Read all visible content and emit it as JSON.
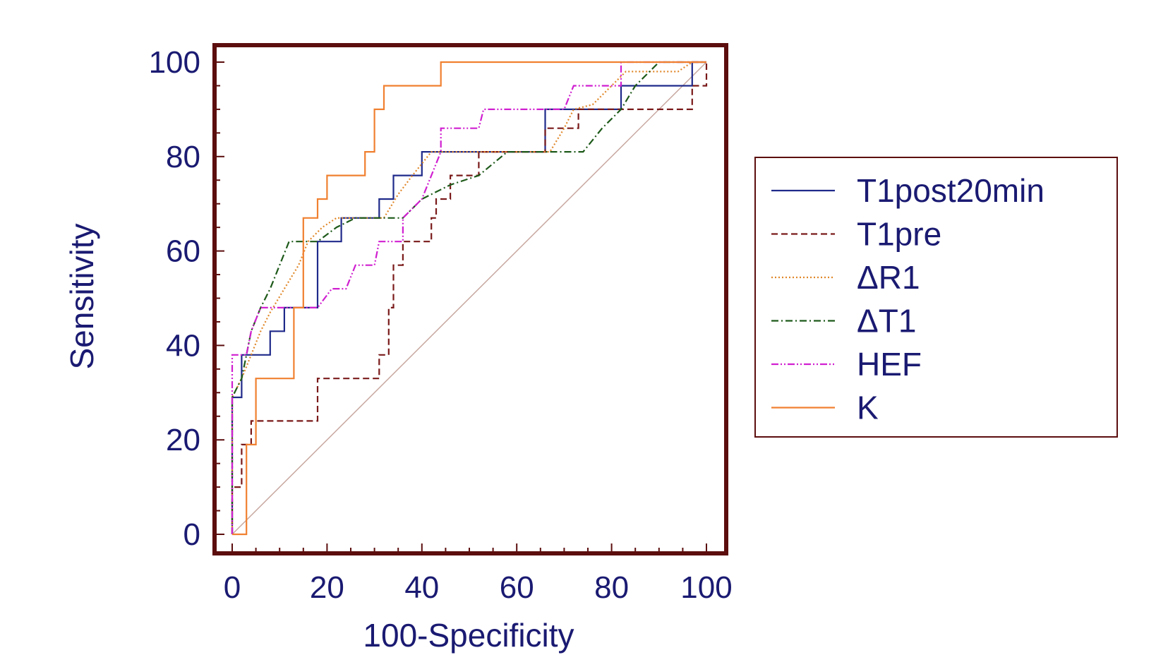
{
  "chart_data": {
    "type": "line",
    "title": "",
    "xlabel": "100-Specificity",
    "ylabel": "Sensitivity",
    "xlim": [
      0,
      100
    ],
    "ylim": [
      0,
      100
    ],
    "xticks": [
      "0",
      "20",
      "40",
      "60",
      "80",
      "100"
    ],
    "yticks": [
      "0",
      "20",
      "40",
      "60",
      "80",
      "100"
    ],
    "legend_position": "right",
    "reference_line": {
      "name": "diagonal",
      "color": "#c8a8a0",
      "points": [
        [
          0,
          0
        ],
        [
          100,
          100
        ]
      ]
    },
    "frame_color": "#5c0e0e",
    "series": [
      {
        "name": "T1post20min",
        "color": "#1f2a8a",
        "dash": "solid",
        "points": [
          [
            0,
            0
          ],
          [
            0,
            29
          ],
          [
            2,
            29
          ],
          [
            2,
            38
          ],
          [
            8,
            38
          ],
          [
            8,
            43
          ],
          [
            11,
            43
          ],
          [
            11,
            48
          ],
          [
            18,
            48
          ],
          [
            18,
            62
          ],
          [
            23,
            62
          ],
          [
            23,
            67
          ],
          [
            31,
            67
          ],
          [
            31,
            71
          ],
          [
            34,
            71
          ],
          [
            34,
            76
          ],
          [
            40,
            76
          ],
          [
            40,
            81
          ],
          [
            66,
            81
          ],
          [
            66,
            90
          ],
          [
            82,
            90
          ],
          [
            82,
            95
          ],
          [
            97,
            95
          ],
          [
            97,
            100
          ],
          [
            100,
            100
          ]
        ]
      },
      {
        "name": "T1pre",
        "color": "#7a1a1a",
        "dash": "9,5",
        "points": [
          [
            0,
            0
          ],
          [
            0,
            10
          ],
          [
            2,
            10
          ],
          [
            2,
            19
          ],
          [
            4,
            19
          ],
          [
            4,
            24
          ],
          [
            18,
            24
          ],
          [
            18,
            33
          ],
          [
            31,
            33
          ],
          [
            31,
            38
          ],
          [
            33,
            38
          ],
          [
            33,
            48
          ],
          [
            34,
            48
          ],
          [
            34,
            57
          ],
          [
            36,
            57
          ],
          [
            36,
            62
          ],
          [
            42,
            62
          ],
          [
            42,
            67
          ],
          [
            43,
            67
          ],
          [
            43,
            71
          ],
          [
            46,
            71
          ],
          [
            46,
            76
          ],
          [
            52,
            76
          ],
          [
            52,
            81
          ],
          [
            66,
            81
          ],
          [
            66,
            86
          ],
          [
            73,
            86
          ],
          [
            73,
            90
          ],
          [
            97,
            90
          ],
          [
            97,
            95
          ],
          [
            100,
            95
          ],
          [
            100,
            100
          ]
        ]
      },
      {
        "name": "ΔR1",
        "color": "#e0882a",
        "dash": "2,3",
        "points": [
          [
            0,
            0
          ],
          [
            0,
            29
          ],
          [
            2,
            33
          ],
          [
            4,
            38
          ],
          [
            6,
            43
          ],
          [
            8,
            47
          ],
          [
            11,
            52
          ],
          [
            14,
            57
          ],
          [
            16,
            62
          ],
          [
            19,
            65
          ],
          [
            22,
            67
          ],
          [
            32,
            67
          ],
          [
            35,
            72
          ],
          [
            38,
            76
          ],
          [
            42,
            81
          ],
          [
            67,
            81
          ],
          [
            70,
            86
          ],
          [
            72,
            90
          ],
          [
            76,
            91
          ],
          [
            80,
            95
          ],
          [
            83,
            98
          ],
          [
            94,
            98
          ],
          [
            97,
            100
          ],
          [
            100,
            100
          ]
        ]
      },
      {
        "name": "ΔT1",
        "color": "#1e5a1a",
        "dash": "10,4,2,4",
        "points": [
          [
            0,
            0
          ],
          [
            0,
            29
          ],
          [
            2,
            33
          ],
          [
            3,
            38
          ],
          [
            4,
            43
          ],
          [
            6,
            48
          ],
          [
            8,
            52
          ],
          [
            10,
            57
          ],
          [
            12,
            62
          ],
          [
            18,
            62
          ],
          [
            22,
            65
          ],
          [
            26,
            67
          ],
          [
            36,
            67
          ],
          [
            40,
            71
          ],
          [
            46,
            74
          ],
          [
            52,
            76
          ],
          [
            58,
            81
          ],
          [
            74,
            81
          ],
          [
            78,
            86
          ],
          [
            82,
            90
          ],
          [
            85,
            95
          ],
          [
            88,
            98
          ],
          [
            90,
            100
          ],
          [
            100,
            100
          ]
        ]
      },
      {
        "name": "HEF",
        "color": "#d020d0",
        "dash": "10,3,2,3,2,3",
        "points": [
          [
            0,
            0
          ],
          [
            0,
            38
          ],
          [
            3,
            38
          ],
          [
            4,
            43
          ],
          [
            6,
            48
          ],
          [
            18,
            48
          ],
          [
            21,
            52
          ],
          [
            24,
            52
          ],
          [
            26,
            57
          ],
          [
            30,
            57
          ],
          [
            31,
            62
          ],
          [
            36,
            62
          ],
          [
            36,
            67
          ],
          [
            40,
            71
          ],
          [
            44,
            81
          ],
          [
            44,
            86
          ],
          [
            52,
            86
          ],
          [
            53,
            90
          ],
          [
            70,
            90
          ],
          [
            72,
            95
          ],
          [
            82,
            95
          ],
          [
            82,
            100
          ],
          [
            100,
            100
          ]
        ]
      },
      {
        "name": "K",
        "color": "#f08030",
        "dash": "solid",
        "points": [
          [
            0,
            0
          ],
          [
            3,
            0
          ],
          [
            3,
            19
          ],
          [
            5,
            19
          ],
          [
            5,
            33
          ],
          [
            13,
            33
          ],
          [
            13,
            48
          ],
          [
            15,
            48
          ],
          [
            15,
            67
          ],
          [
            18,
            67
          ],
          [
            18,
            71
          ],
          [
            20,
            71
          ],
          [
            20,
            76
          ],
          [
            28,
            76
          ],
          [
            28,
            81
          ],
          [
            30,
            81
          ],
          [
            30,
            90
          ],
          [
            32,
            90
          ],
          [
            32,
            95
          ],
          [
            44,
            95
          ],
          [
            44,
            100
          ],
          [
            100,
            100
          ]
        ]
      }
    ]
  }
}
